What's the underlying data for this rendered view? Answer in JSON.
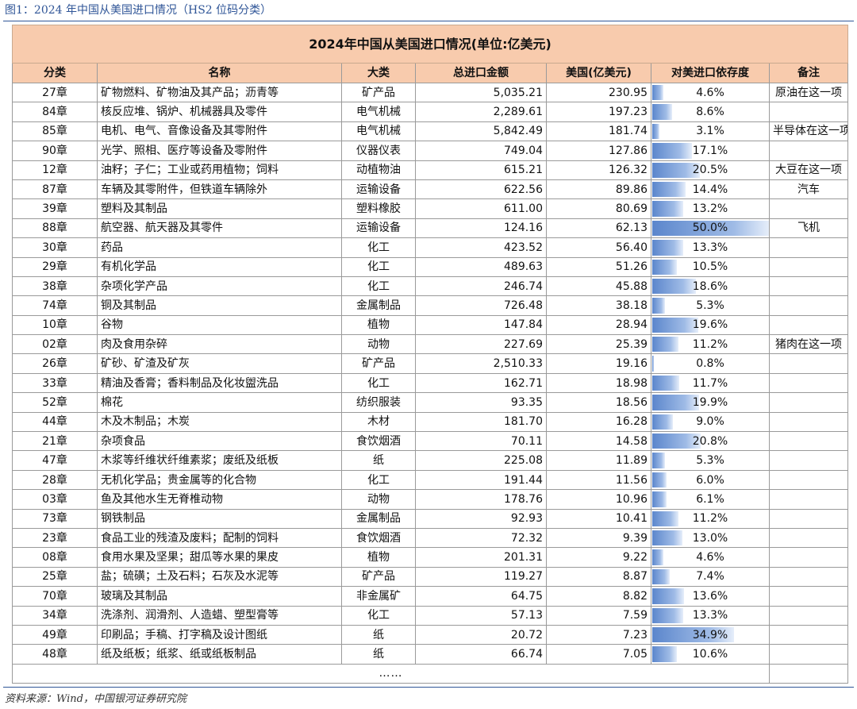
{
  "figure_title": "图1：2024 年中国从美国进口情况（HS2 位码分类）",
  "table": {
    "title": "2024年中国从美国进口情况(单位:亿美元)",
    "headers": [
      "分类",
      "名称",
      "大类",
      "总进口金额",
      "美国(亿美元)",
      "对美进口依存度",
      "备注"
    ],
    "rows": [
      {
        "code": "27章",
        "name": "矿物燃料、矿物油及其产品；沥青等",
        "category": "矿产品",
        "total": "5,035.21",
        "us": "230.95",
        "dependence": "4.6%",
        "dep_value": 4.6,
        "note": "原油在这一项"
      },
      {
        "code": "84章",
        "name": "核反应堆、锅炉、机械器具及零件",
        "category": "电气机械",
        "total": "2,289.61",
        "us": "197.23",
        "dependence": "8.6%",
        "dep_value": 8.6,
        "note": ""
      },
      {
        "code": "85章",
        "name": "电机、电气、音像设备及其零附件",
        "category": "电气机械",
        "total": "5,842.49",
        "us": "181.74",
        "dependence": "3.1%",
        "dep_value": 3.1,
        "note": "半导体在这一项"
      },
      {
        "code": "90章",
        "name": "光学、照相、医疗等设备及零附件",
        "category": "仪器仪表",
        "total": "749.04",
        "us": "127.86",
        "dependence": "17.1%",
        "dep_value": 17.1,
        "note": ""
      },
      {
        "code": "12章",
        "name": "油籽；子仁；工业或药用植物；饲料",
        "category": "动植物油",
        "total": "615.21",
        "us": "126.32",
        "dependence": "20.5%",
        "dep_value": 20.5,
        "note": "大豆在这一项"
      },
      {
        "code": "87章",
        "name": "车辆及其零附件，但铁道车辆除外",
        "category": "运输设备",
        "total": "622.56",
        "us": "89.86",
        "dependence": "14.4%",
        "dep_value": 14.4,
        "note": "汽车"
      },
      {
        "code": "39章",
        "name": "塑料及其制品",
        "category": "塑料橡胶",
        "total": "611.00",
        "us": "80.69",
        "dependence": "13.2%",
        "dep_value": 13.2,
        "note": ""
      },
      {
        "code": "88章",
        "name": "航空器、航天器及其零件",
        "category": "运输设备",
        "total": "124.16",
        "us": "62.13",
        "dependence": "50.0%",
        "dep_value": 50.0,
        "note": "飞机"
      },
      {
        "code": "30章",
        "name": "药品",
        "category": "化工",
        "total": "423.52",
        "us": "56.40",
        "dependence": "13.3%",
        "dep_value": 13.3,
        "note": ""
      },
      {
        "code": "29章",
        "name": "有机化学品",
        "category": "化工",
        "total": "489.63",
        "us": "51.26",
        "dependence": "10.5%",
        "dep_value": 10.5,
        "note": ""
      },
      {
        "code": "38章",
        "name": "杂项化学产品",
        "category": "化工",
        "total": "246.74",
        "us": "45.88",
        "dependence": "18.6%",
        "dep_value": 18.6,
        "note": ""
      },
      {
        "code": "74章",
        "name": "铜及其制品",
        "category": "金属制品",
        "total": "726.48",
        "us": "38.18",
        "dependence": "5.3%",
        "dep_value": 5.3,
        "note": ""
      },
      {
        "code": "10章",
        "name": "谷物",
        "category": "植物",
        "total": "147.84",
        "us": "28.94",
        "dependence": "19.6%",
        "dep_value": 19.6,
        "note": ""
      },
      {
        "code": "02章",
        "name": "肉及食用杂碎",
        "category": "动物",
        "total": "227.69",
        "us": "25.39",
        "dependence": "11.2%",
        "dep_value": 11.2,
        "note": "猪肉在这一项"
      },
      {
        "code": "26章",
        "name": "矿砂、矿渣及矿灰",
        "category": "矿产品",
        "total": "2,510.33",
        "us": "19.16",
        "dependence": "0.8%",
        "dep_value": 0.8,
        "note": ""
      },
      {
        "code": "33章",
        "name": "精油及香膏；香料制品及化妆盥洗品",
        "category": "化工",
        "total": "162.71",
        "us": "18.98",
        "dependence": "11.7%",
        "dep_value": 11.7,
        "note": ""
      },
      {
        "code": "52章",
        "name": "棉花",
        "category": "纺织服装",
        "total": "93.35",
        "us": "18.56",
        "dependence": "19.9%",
        "dep_value": 19.9,
        "note": ""
      },
      {
        "code": "44章",
        "name": "木及木制品；木炭",
        "category": "木材",
        "total": "181.70",
        "us": "16.28",
        "dependence": "9.0%",
        "dep_value": 9.0,
        "note": ""
      },
      {
        "code": "21章",
        "name": "杂项食品",
        "category": "食饮烟酒",
        "total": "70.11",
        "us": "14.58",
        "dependence": "20.8%",
        "dep_value": 20.8,
        "note": ""
      },
      {
        "code": "47章",
        "name": "木浆等纤维状纤维素浆；废纸及纸板",
        "category": "纸",
        "total": "225.08",
        "us": "11.89",
        "dependence": "5.3%",
        "dep_value": 5.3,
        "note": ""
      },
      {
        "code": "28章",
        "name": "无机化学品；贵金属等的化合物",
        "category": "化工",
        "total": "191.44",
        "us": "11.56",
        "dependence": "6.0%",
        "dep_value": 6.0,
        "note": ""
      },
      {
        "code": "03章",
        "name": "鱼及其他水生无脊椎动物",
        "category": "动物",
        "total": "178.76",
        "us": "10.96",
        "dependence": "6.1%",
        "dep_value": 6.1,
        "note": ""
      },
      {
        "code": "73章",
        "name": "钢铁制品",
        "category": "金属制品",
        "total": "92.93",
        "us": "10.41",
        "dependence": "11.2%",
        "dep_value": 11.2,
        "note": ""
      },
      {
        "code": "23章",
        "name": "食品工业的残渣及废料；配制的饲料",
        "category": "食饮烟酒",
        "total": "72.32",
        "us": "9.39",
        "dependence": "13.0%",
        "dep_value": 13.0,
        "note": ""
      },
      {
        "code": "08章",
        "name": "食用水果及坚果；甜瓜等水果的果皮",
        "category": "植物",
        "total": "201.31",
        "us": "9.22",
        "dependence": "4.6%",
        "dep_value": 4.6,
        "note": ""
      },
      {
        "code": "25章",
        "name": "盐；硫磺；土及石料；石灰及水泥等",
        "category": "矿产品",
        "total": "119.27",
        "us": "8.87",
        "dependence": "7.4%",
        "dep_value": 7.4,
        "note": ""
      },
      {
        "code": "70章",
        "name": "玻璃及其制品",
        "category": "非金属矿",
        "total": "64.75",
        "us": "8.82",
        "dependence": "13.6%",
        "dep_value": 13.6,
        "note": ""
      },
      {
        "code": "34章",
        "name": "洗涤剂、润滑剂、人造蜡、塑型膏等",
        "category": "化工",
        "total": "57.13",
        "us": "7.59",
        "dependence": "13.3%",
        "dep_value": 13.3,
        "note": ""
      },
      {
        "code": "49章",
        "name": "印刷品；手稿、打字稿及设计图纸",
        "category": "纸",
        "total": "20.72",
        "us": "7.23",
        "dependence": "34.9%",
        "dep_value": 34.9,
        "note": ""
      },
      {
        "code": "48章",
        "name": "纸及纸板；纸浆、纸或纸板制品",
        "category": "纸",
        "total": "66.74",
        "us": "7.05",
        "dependence": "10.6%",
        "dep_value": 10.6,
        "note": ""
      }
    ],
    "ellipsis": "……",
    "bar_max_value": 50.0
  },
  "source": "资料来源：Wind，中国银河证券研究院",
  "colors": {
    "header_bg": "#f8cbad",
    "bar": "#5b86cc",
    "accent": "#2f5597"
  }
}
